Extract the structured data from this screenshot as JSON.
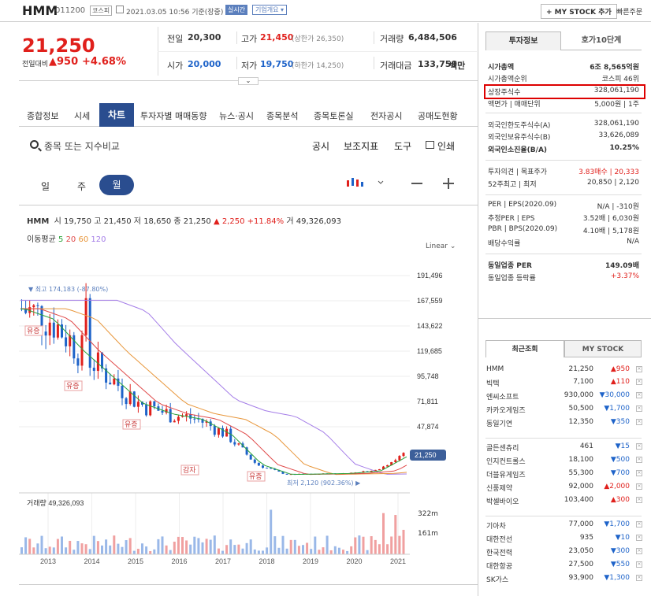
{
  "header": {
    "name": "HMM",
    "code": "011200",
    "market": "코스피",
    "timestamp": "2021.03.05 10:56 기준(장중)",
    "realtime": "실시간",
    "company": "기업개요 ▾",
    "mystock": "+ MY STOCK 추가",
    "quick": "빠른주문"
  },
  "quote": {
    "price": "21,250",
    "change_label": "전일대비",
    "change": "▲950",
    "pct": "+4.68%",
    "prev_label": "전일",
    "prev": "20,300",
    "high_label": "고가",
    "high": "21,450",
    "upper": "(상한가 26,350)",
    "vol_label": "거래량",
    "vol": "6,484,506",
    "open_label": "시가",
    "open": "20,000",
    "low_label": "저가",
    "low": "19,750",
    "lower": "(하한가 14,250)",
    "amt_label": "거래대금",
    "amt": "133,759",
    "amt_unit": "백만"
  },
  "tabs": [
    "종합정보",
    "시세",
    "차트",
    "투자자별 매매동향",
    "뉴스·공시",
    "종목분석",
    "종목토론실",
    "전자공시",
    "공매도현황"
  ],
  "toolbar": {
    "search_ph": "종목 또는 지수비교",
    "notice": "공시",
    "indicator": "보조지표",
    "tool": "도구",
    "print": "인쇄"
  },
  "period": {
    "d": "일",
    "w": "주",
    "m": "월"
  },
  "chartinfo": {
    "name": "HMM",
    "o_l": "시",
    "o": "19,750",
    "h_l": "고",
    "h": "21,450",
    "l_l": "저",
    "l": "18,650",
    "c_l": "종",
    "c": "21,250",
    "chg": "▲ 2,250",
    "pct": "+11.84%",
    "v_l": "거",
    "v": "49,326,093",
    "ma_label": "이동평균",
    "ma": [
      "5",
      "20",
      "60",
      "120"
    ],
    "scale": "Linear",
    "vol_label": "거래량",
    "vol_val": "49,326,093"
  },
  "chart_data": {
    "type": "line",
    "y_ticks": [
      "191,496",
      "167,559",
      "143,622",
      "119,685",
      "95,748",
      "71,811",
      "47,874"
    ],
    "last_price": "21,250",
    "max_note": "▼ 최고 174,183 (-87.80%)",
    "min_note": "최저 2,120 (902.36%) ▶",
    "markers": [
      "유증",
      "유증",
      "유증",
      "감자",
      "유증"
    ],
    "vol_ticks": [
      "322m",
      "161m"
    ],
    "x_ticks": [
      "2013",
      "2014",
      "2015",
      "2016",
      "2017",
      "2018",
      "2019",
      "2020",
      "2021"
    ],
    "close_approx": [
      160000,
      150000,
      120000,
      95000,
      70000,
      60000,
      55000,
      40000,
      12000,
      2500,
      3000,
      3500,
      6000,
      21250
    ],
    "colors": {
      "ma5": "#2aa33a",
      "ma20": "#e04a4a",
      "ma60": "#e8963a",
      "ma120": "#a57ee8"
    }
  },
  "invest": {
    "tab1": "투자정보",
    "tab2": "호가10단계",
    "rows": [
      {
        "l": "시가총액",
        "v": "6조 8,565억원",
        "b": true
      },
      {
        "l": "시가총액순위",
        "v": "코스피 46위"
      },
      {
        "l": "상장주식수",
        "v": "328,061,190"
      },
      {
        "l": "액면가 | 매매단위",
        "v": "5,000원 | 1주"
      },
      {
        "l": "외국인한도주식수(A)",
        "v": "328,061,190"
      },
      {
        "l": "외국인보유주식수(B)",
        "v": "33,626,089"
      },
      {
        "l": "외국인소진율(B/A)",
        "v": "10.25%",
        "b": true
      },
      {
        "l": "투자의견 | 목표주가",
        "v": "3.83매수 | 20,333"
      },
      {
        "l": "52주최고 | 최저",
        "v": "20,850 | 2,120"
      },
      {
        "l": "PER | EPS(2020.09)",
        "v": "N/A | -310원"
      },
      {
        "l": "추정PER | EPS",
        "v": "3.52배 | 6,030원"
      },
      {
        "l": "PBR | BPS(2020.09)",
        "v": "4.10배 | 5,178원"
      },
      {
        "l": "배당수익률",
        "v": "N/A"
      },
      {
        "l": "동일업종 PER",
        "v": "149.09배",
        "b": true
      },
      {
        "l": "동일업종 등락률",
        "v": "+3.37%"
      }
    ]
  },
  "recent": {
    "tab1": "최근조회",
    "tab2": "MY STOCK",
    "rows": [
      {
        "n": "HMM",
        "p": "21,250",
        "c": "▲950",
        "d": "up"
      },
      {
        "n": "빅텍",
        "p": "7,100",
        "c": "▲110",
        "d": "up"
      },
      {
        "n": "엔씨소프트",
        "p": "930,000",
        "c": "▼30,000",
        "d": "dn"
      },
      {
        "n": "카카오게임즈",
        "p": "50,500",
        "c": "▼1,700",
        "d": "dn"
      },
      {
        "n": "동일기연",
        "p": "12,350",
        "c": "▼350",
        "d": "dn"
      },
      {
        "n": "골든센츄리",
        "p": "461",
        "c": "▼15",
        "d": "dn"
      },
      {
        "n": "인지컨트롤스",
        "p": "18,100",
        "c": "▼500",
        "d": "dn"
      },
      {
        "n": "더블유게임즈",
        "p": "55,300",
        "c": "▼700",
        "d": "dn"
      },
      {
        "n": "신풍제약",
        "p": "92,000",
        "c": "▲2,000",
        "d": "up"
      },
      {
        "n": "박셀바이오",
        "p": "103,400",
        "c": "▲300",
        "d": "up"
      },
      {
        "n": "기아차",
        "p": "77,000",
        "c": "▼1,700",
        "d": "dn"
      },
      {
        "n": "대한전선",
        "p": "935",
        "c": "▼10",
        "d": "dn"
      },
      {
        "n": "한국전력",
        "p": "23,050",
        "c": "▼300",
        "d": "dn"
      },
      {
        "n": "대한항공",
        "p": "27,500",
        "c": "▼550",
        "d": "dn"
      },
      {
        "n": "SK가스",
        "p": "93,900",
        "c": "▼1,300",
        "d": "dn"
      }
    ]
  }
}
